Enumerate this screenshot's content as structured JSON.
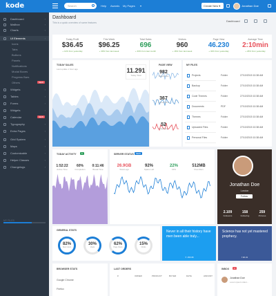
{
  "app": {
    "logo": "kode",
    "search_placeholder": "Search",
    "nav": [
      "Help",
      "Awards",
      "My Pages"
    ],
    "create_label": "Create New",
    "user_name": "Jonathan Doe"
  },
  "sidebar": {
    "items": [
      {
        "label": "Dashboard",
        "type": "main"
      },
      {
        "label": "Mailbox",
        "type": "main"
      },
      {
        "label": "Charts",
        "type": "main"
      },
      {
        "label": "UI Elements",
        "type": "main",
        "active": true
      },
      {
        "label": "Icons",
        "type": "sub"
      },
      {
        "label": "Tabs",
        "type": "sub"
      },
      {
        "label": "Buttons",
        "type": "sub"
      },
      {
        "label": "Panels",
        "type": "sub"
      },
      {
        "label": "Notifications",
        "type": "sub"
      },
      {
        "label": "Modal Boxes",
        "type": "sub"
      },
      {
        "label": "Progress Bars",
        "type": "sub"
      },
      {
        "label": "Others",
        "type": "sub",
        "badge": "NEW"
      },
      {
        "label": "Widgets",
        "type": "main"
      },
      {
        "label": "Tables",
        "type": "main"
      },
      {
        "label": "Forms",
        "type": "main"
      },
      {
        "label": "Widgets",
        "type": "main"
      },
      {
        "label": "Calendar",
        "type": "main",
        "badge": "NEW"
      },
      {
        "label": "Typography",
        "type": "main"
      },
      {
        "label": "Extra Pages",
        "type": "main"
      },
      {
        "label": "Grid System",
        "type": "main"
      },
      {
        "label": "Maps",
        "type": "main"
      },
      {
        "label": "Customizable",
        "type": "main"
      },
      {
        "label": "Helper Classes",
        "type": "main"
      },
      {
        "label": "Changelogs",
        "type": "main"
      }
    ],
    "section": "My Files",
    "files_progress": 0.68
  },
  "header": {
    "title": "Dashboard",
    "subtitle": "This is a quick overview of some features",
    "dashboard_label": "Dashboard"
  },
  "stats": [
    {
      "label": "Today Profit",
      "value": "$36.45",
      "sub": "+ 12% from yesterday",
      "color": "#333333"
    },
    {
      "label": "This Week",
      "value": "$96.25",
      "sub": "+ 30% from last week",
      "color": "#333333"
    },
    {
      "label": "Total Sales",
      "value": "696",
      "sub": "+ 36% from last month",
      "color": "#2e9e5b"
    },
    {
      "label": "Visitors",
      "value": "960",
      "sub": "+ 16% from last week",
      "color": "#333333"
    },
    {
      "label": "Page View",
      "value": "46.230",
      "sub": "+ 32% from yesterday",
      "color": "#1c7ed6"
    },
    {
      "label": "Average Time",
      "value": "2:10min",
      "sub": "+ 26% from yesterday",
      "color": "#e7505a"
    }
  ],
  "today_sales": {
    "title": "Today Sales",
    "sub": "Last update 1 hour ago",
    "big_value": "11.291",
    "big_label": "Today Total"
  },
  "page_view": {
    "title": "Page View",
    "items": [
      {
        "value": "982",
        "label": "Pageviews"
      },
      {
        "value": "367",
        "label": "Conversion"
      },
      {
        "value": "52",
        "label": "Pageview"
      }
    ]
  },
  "my_files": {
    "title": "My Files",
    "rows": [
      {
        "name": "Projects",
        "type": "Folder",
        "date": "27/10/2015 10:38 AM"
      },
      {
        "name": "Backup",
        "type": "Folder",
        "date": "27/10/2015 10:38 AM"
      },
      {
        "name": "Code Themes",
        "type": "Folder",
        "date": "27/10/2015 10:38 AM"
      },
      {
        "name": "Documents",
        "type": "PDF",
        "date": "27/10/2015 10:38 AM"
      },
      {
        "name": "Themes",
        "type": "Folder",
        "date": "27/10/2015 10:38 AM"
      },
      {
        "name": "Uploaded Files",
        "type": "Folder",
        "date": "27/10/2015 10:38 AM"
      },
      {
        "name": "Personal Files",
        "type": "Folder",
        "date": "27/10/2015 10:38 AM"
      }
    ]
  },
  "today_activity": {
    "title": "Today Activity",
    "badge": "5",
    "stats": [
      {
        "value": "1:52:22",
        "label": "Active Time"
      },
      {
        "value": "60%",
        "label": "Completion"
      },
      {
        "value": "0:11:46",
        "label": "Break Time"
      }
    ]
  },
  "server_status": {
    "title": "Server Status",
    "badge": "NEW",
    "stats": [
      {
        "value": "26.9GB",
        "label": "Total Logs",
        "color": "#e7505a"
      },
      {
        "value": "92%",
        "label": "Space Left",
        "color": "#333333"
      },
      {
        "value": "22%",
        "label": "CPU",
        "color": "#2e9e5b"
      },
      {
        "value": "512MB",
        "label": "Free Ram",
        "color": "#333333"
      }
    ]
  },
  "profile": {
    "name": "Jonathan Doe",
    "location": "London",
    "button": "Follow",
    "stats": [
      {
        "value": "2.109",
        "label": "Followers"
      },
      {
        "value": "158",
        "label": "Following"
      },
      {
        "value": "259",
        "label": "Pictures"
      }
    ]
  },
  "general_stats": {
    "title": "General Stats",
    "items": [
      {
        "value": "82%",
        "label": "New Users",
        "percent": 82
      },
      {
        "value": "30%",
        "label": "Views",
        "percent": 30
      },
      {
        "value": "62%",
        "label": "Page Views",
        "percent": 62
      },
      {
        "value": "15%",
        "label": "Clicks",
        "percent": 15
      }
    ]
  },
  "twitter_tile": {
    "text": "Never in all their history have men been able truly...",
    "counts": [
      "156",
      "95"
    ]
  },
  "facebook_tile": {
    "text": "Science has not yet mastered prophecy.",
    "counts": [
      "32",
      "21"
    ]
  },
  "browser_stats": {
    "title": "Browser Stats",
    "rows": [
      "Google Chrome",
      "Firefox"
    ]
  },
  "last_orders": {
    "title": "Last Orders",
    "columns": [
      "#",
      "Order",
      "Product",
      "Buyer",
      "Date",
      "Amount"
    ]
  },
  "inbox": {
    "title": "Inbox",
    "badge": "2",
    "sender": "Jonathan Doe",
    "snippet": "Lorem ipsum dolor..."
  }
}
